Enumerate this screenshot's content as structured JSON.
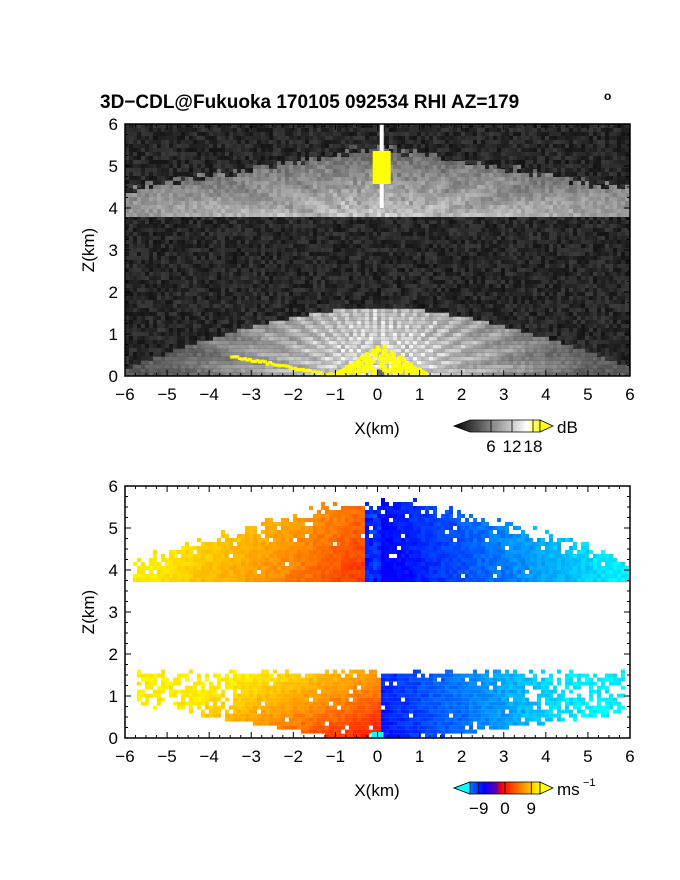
{
  "title": "3D−CDL@Fukuoka 170105 092534 RHI AZ=179",
  "title_degree": "o",
  "chart_data": [
    {
      "type": "heatmap",
      "panel": "reflectivity",
      "xlabel": "X(km)",
      "ylabel": "Z(km)",
      "xlim": [
        -6,
        6
      ],
      "ylim": [
        0,
        6
      ],
      "x_ticks": [
        "−6",
        "−5",
        "−4",
        "−3",
        "−2",
        "−1",
        "0",
        "1",
        "2",
        "3",
        "4",
        "5",
        "6"
      ],
      "y_ticks": [
        "0",
        "1",
        "2",
        "3",
        "4",
        "5",
        "6"
      ],
      "colorbar": {
        "unit": "dB",
        "tick_labels": [
          "6",
          "12",
          "18"
        ],
        "ticks": [
          6,
          12,
          18
        ],
        "range": [
          0,
          20
        ],
        "colors": [
          "#000000",
          "#ffffff",
          "#ffff00"
        ]
      },
      "bands": [
        {
          "name": "upper cloud layer",
          "z_bottom": 3.8,
          "z_top": 5.5,
          "x_range": [
            -6,
            6
          ]
        },
        {
          "name": "lower cloud layer",
          "z_bottom": 0,
          "z_top": 1.6,
          "x_range": [
            -6,
            6
          ]
        }
      ],
      "features": [
        {
          "name": "high echo column",
          "x": 0.1,
          "z_range": [
            4.6,
            5.4
          ],
          "value_db": 20
        },
        {
          "name": "near-radar high echo",
          "x_range": [
            -1.0,
            1.1
          ],
          "z_range": [
            0.1,
            0.8
          ],
          "value_db": 20
        }
      ]
    },
    {
      "type": "heatmap",
      "panel": "doppler velocity",
      "xlabel": "X(km)",
      "ylabel": "Z(km)",
      "xlim": [
        -6,
        6
      ],
      "ylim": [
        0,
        6
      ],
      "x_ticks": [
        "−6",
        "−5",
        "−4",
        "−3",
        "−2",
        "−1",
        "0",
        "1",
        "2",
        "3",
        "4",
        "5",
        "6"
      ],
      "y_ticks": [
        "0",
        "1",
        "2",
        "3",
        "4",
        "5",
        "6"
      ],
      "colorbar": {
        "unit": "ms",
        "unit_exp": "−1",
        "tick_labels": [
          "−9",
          "0",
          "9"
        ],
        "ticks": [
          -9,
          0,
          9
        ],
        "range": [
          -12,
          12
        ],
        "colors": [
          "#00ffff",
          "#0000ff",
          "#ff0000",
          "#ffff00"
        ]
      },
      "bands": [
        {
          "name": "upper cloud layer",
          "z_bottom": 3.8,
          "z_top": 5.5,
          "x_range": [
            -5.9,
            5.9
          ],
          "v_left": 9,
          "v_right": -9
        },
        {
          "name": "lower cloud layer",
          "z_bottom": 0,
          "z_top": 1.6,
          "x_range": [
            -5.8,
            5.8
          ],
          "v_left": 9,
          "v_right": -9
        }
      ]
    }
  ]
}
